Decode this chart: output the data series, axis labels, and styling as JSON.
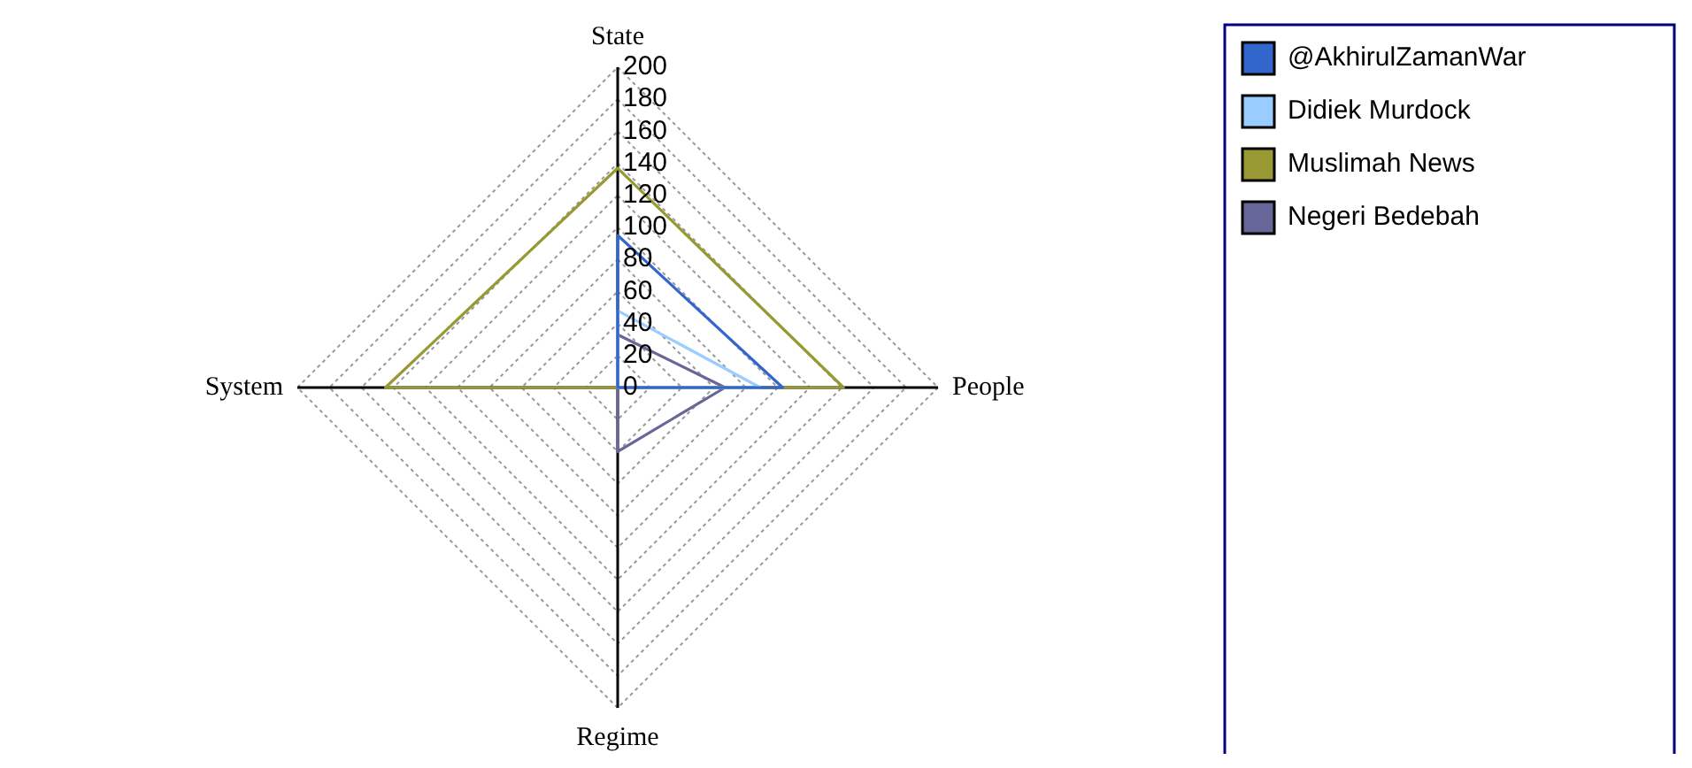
{
  "chart_data": {
    "type": "radar",
    "categories": [
      "State",
      "People",
      "Regime",
      "System"
    ],
    "series": [
      {
        "name": "@AkhirulZamanWar",
        "color": "#3366cc",
        "values": [
          95,
          103,
          0,
          0
        ]
      },
      {
        "name": "Didiek Murdock",
        "color": "#99ccff",
        "values": [
          48,
          89,
          0,
          0
        ]
      },
      {
        "name": "Muslimah News",
        "color": "#999933",
        "values": [
          137,
          141,
          0,
          145
        ]
      },
      {
        "name": "Negeri Bedebah",
        "color": "#666699",
        "values": [
          33,
          67,
          40,
          0
        ]
      }
    ],
    "ylim": [
      0,
      200
    ],
    "yticks": [
      0,
      20,
      40,
      60,
      80,
      100,
      120,
      140,
      160,
      180,
      200
    ],
    "grid": true,
    "legend": "right",
    "marker": "none",
    "line_style": "solid"
  }
}
